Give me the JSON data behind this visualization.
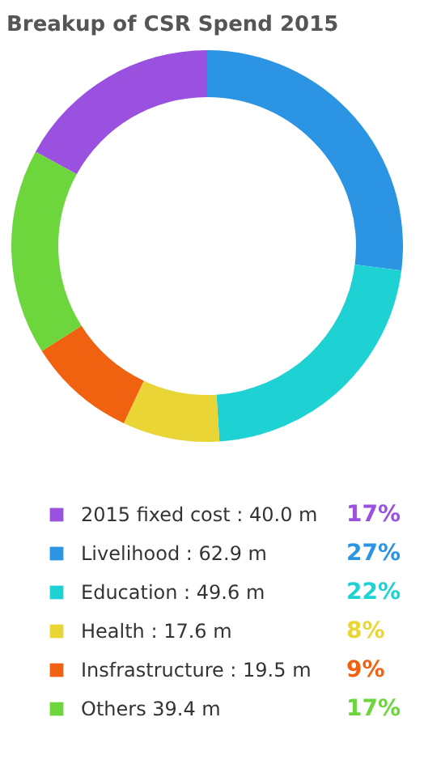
{
  "chart_data": {
    "type": "donut",
    "title": "Breakup of CSR Spend 2015",
    "categories": [
      "2015 fixed cost : 40.0 m",
      "Livelihood : 62.9 m",
      "Education : 49.6 m",
      "Health : 17.6 m",
      "Insfrastructure : 19.5 m",
      "Others 39.4 m"
    ],
    "values": [
      17,
      27,
      22,
      8,
      9,
      17
    ],
    "value_labels": [
      "17%",
      "27%",
      "22%",
      "8%",
      "9%",
      "17%"
    ],
    "colors": [
      "#9b51e0",
      "#2b95e3",
      "#1ed2d4",
      "#e9d535",
      "#f0620f",
      "#6cd63c"
    ],
    "legend": "bottom"
  }
}
